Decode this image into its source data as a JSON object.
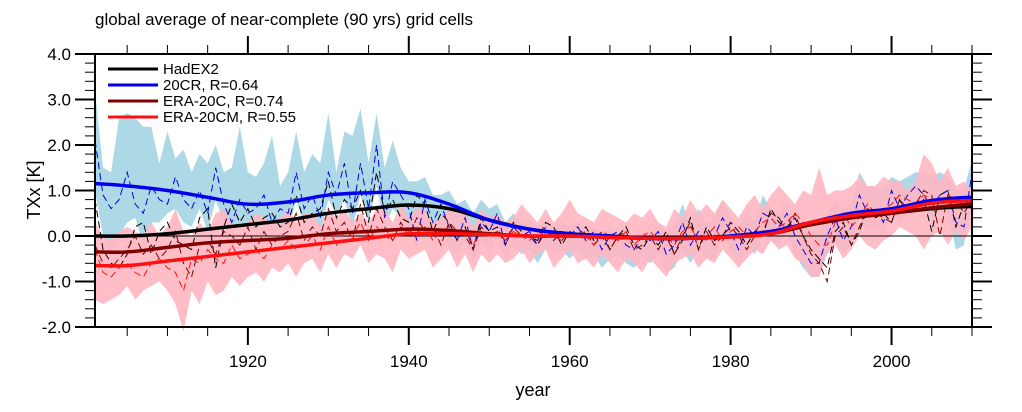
{
  "chart_data": {
    "type": "line",
    "title": "global average of near-complete (90 yrs) grid cells",
    "xlabel": "year",
    "ylabel": "TXx [K]",
    "xlim": [
      1901,
      2010
    ],
    "ylim": [
      -2.0,
      4.0
    ],
    "x_ticks": [
      1920,
      1940,
      1960,
      1980,
      2000
    ],
    "x_tick_labels": [
      "1920",
      "1940",
      "1960",
      "1980",
      "2000"
    ],
    "y_ticks": [
      -2.0,
      -1.0,
      0.0,
      1.0,
      2.0,
      3.0,
      4.0
    ],
    "y_tick_labels": [
      "-2.0",
      "-1.0",
      "0.0",
      "1.0",
      "2.0",
      "3.0",
      "4.0"
    ],
    "zero_line": true,
    "grid": false,
    "legend_position": "top-left",
    "legend": [
      {
        "label": "HadEX2",
        "color": "#000000"
      },
      {
        "label": "20CR, R=0.64",
        "color": "#0000ee"
      },
      {
        "label": "ERA-20C, R=0.74",
        "color": "#800000"
      },
      {
        "label": "ERA-20CM, R=0.55",
        "color": "#ff1010"
      }
    ],
    "colors": {
      "hadex2": "#000000",
      "20cr": "#0000ee",
      "era20c": "#800000",
      "era20cm": "#ff1010",
      "20cr_spread": "#add8e6",
      "era20cm_spread": "#ffb6c1"
    },
    "smoothed": {
      "years": [
        1901,
        1905,
        1910,
        1915,
        1920,
        1925,
        1930,
        1935,
        1940,
        1945,
        1950,
        1955,
        1960,
        1965,
        1970,
        1975,
        1980,
        1985,
        1990,
        1995,
        2000,
        2005,
        2010
      ],
      "series": [
        {
          "name": "HadEX2",
          "values": [
            0.0,
            0.0,
            0.05,
            0.15,
            0.25,
            0.35,
            0.5,
            0.6,
            0.68,
            0.6,
            0.35,
            0.15,
            0.05,
            0.0,
            -0.05,
            -0.05,
            0.0,
            0.1,
            0.25,
            0.4,
            0.5,
            0.6,
            0.65
          ]
        },
        {
          "name": "20CR, R=0.64",
          "values": [
            1.15,
            1.1,
            1.0,
            0.85,
            0.7,
            0.75,
            0.9,
            0.95,
            0.95,
            0.7,
            0.35,
            0.15,
            0.05,
            0.0,
            -0.05,
            -0.05,
            0.0,
            0.1,
            0.3,
            0.5,
            0.6,
            0.78,
            0.85
          ]
        },
        {
          "name": "ERA-20C, R=0.74",
          "values": [
            -0.35,
            -0.35,
            -0.25,
            -0.15,
            -0.1,
            -0.05,
            0.05,
            0.1,
            0.15,
            0.12,
            0.05,
            0.0,
            0.0,
            -0.03,
            -0.05,
            -0.05,
            -0.02,
            0.05,
            0.25,
            0.4,
            0.5,
            0.62,
            0.7
          ]
        },
        {
          "name": "ERA-20CM, R=0.55",
          "values": [
            -0.65,
            -0.65,
            -0.55,
            -0.45,
            -0.35,
            -0.25,
            -0.15,
            -0.05,
            0.05,
            0.05,
            0.03,
            0.0,
            0.0,
            -0.03,
            -0.05,
            -0.05,
            -0.02,
            0.05,
            0.3,
            0.45,
            0.55,
            0.72,
            0.78
          ]
        }
      ]
    },
    "annual": {
      "start_year": 1901,
      "series": [
        {
          "name": "HadEX2",
          "style": "dashed",
          "values": [
            0.8,
            -0.3,
            -0.6,
            -0.7,
            -0.4,
            0.2,
            0.3,
            -0.4,
            0.1,
            0.3,
            -0.1,
            -0.2,
            -0.3,
            0.4,
            0.6,
            -0.7,
            0.2,
            0.7,
            0.3,
            0.6,
            0.2,
            0.4,
            0.5,
            0.2,
            0.3,
            0.9,
            0.3,
            0.5,
            0.6,
            1.2,
            0.4,
            0.8,
            0.6,
            1.0,
            0.3,
            1.4,
            0.5,
            0.8,
            0.4,
            0.3,
            0.9,
            0.7,
            0.1,
            0.5,
            0.3,
            -0.1,
            0.2,
            -0.3,
            0.4,
            0.1,
            0.2,
            -0.2,
            0.3,
            0.1,
            0.0,
            -0.1,
            0.3,
            0.2,
            -0.2,
            0.1,
            0.0,
            0.2,
            -0.1,
            0.1,
            -0.3,
            0.0,
            0.2,
            -0.2,
            -0.3,
            0.0,
            -0.2,
            0.1,
            -0.4,
            -0.1,
            0.4,
            -0.3,
            0.2,
            -0.1,
            0.0,
            0.3,
            0.1,
            -0.2,
            0.1,
            0.0,
            0.6,
            0.3,
            0.2,
            0.4,
            0.0,
            -0.3,
            -0.5,
            -0.7,
            0.1,
            0.3,
            -0.2,
            0.1,
            0.6,
            0.4,
            0.5,
            0.3,
            0.8,
            0.5,
            0.6,
            0.8,
            0.1,
            0.9,
            1.0,
            0.2,
            0.7,
            0.6
          ]
        },
        {
          "name": "20CR, R=0.64",
          "style": "dashed",
          "values": [
            2.1,
            0.9,
            0.6,
            0.8,
            1.4,
            0.7,
            0.5,
            1.1,
            0.8,
            0.7,
            1.3,
            0.8,
            0.6,
            1.0,
            0.5,
            1.5,
            0.7,
            0.3,
            0.8,
            0.5,
            0.6,
            0.9,
            0.3,
            0.6,
            0.5,
            1.4,
            0.6,
            0.9,
            0.4,
            1.4,
            0.9,
            1.6,
            0.5,
            1.6,
            0.6,
            2.0,
            0.4,
            1.2,
            0.9,
            0.6,
            -0.1,
            0.8,
            0.3,
            0.7,
            0.2,
            -0.1,
            0.4,
            -0.3,
            0.3,
            0.1,
            0.5,
            -0.2,
            0.2,
            0.0,
            0.1,
            -0.2,
            0.2,
            -0.1,
            0.1,
            0.0,
            0.2,
            -0.1,
            0.1,
            -0.3,
            0.0,
            0.1,
            -0.2,
            -0.3,
            0.0,
            -0.1,
            0.1,
            -0.4,
            -0.2,
            0.3,
            -0.2,
            0.1,
            -0.1,
            0.0,
            0.4,
            0.1,
            -0.3,
            0.2,
            0.0,
            0.5,
            0.4,
            0.2,
            0.5,
            0.0,
            -0.3,
            -0.6,
            -0.6,
            0.0,
            0.4,
            -0.1,
            0.2,
            0.9,
            0.5,
            0.6,
            0.3,
            1.0,
            0.6,
            0.9,
            1.1,
            0.9,
            0.6,
            0.9,
            1.0,
            0.3,
            0.2,
            1.4
          ]
        },
        {
          "name": "ERA-20C, R=0.74",
          "style": "dashed",
          "values": [
            -0.2,
            -0.6,
            -0.7,
            -0.5,
            -0.3,
            0.0,
            -0.4,
            -0.2,
            -0.5,
            -0.3,
            0.1,
            -0.6,
            -0.9,
            -0.2,
            -0.1,
            -0.4,
            0.1,
            0.0,
            -0.2,
            0.2,
            -0.3,
            0.1,
            -0.2,
            0.0,
            0.1,
            0.5,
            -0.1,
            0.2,
            0.0,
            0.6,
            0.1,
            0.3,
            -0.1,
            0.7,
            0.0,
            0.6,
            0.2,
            -0.1,
            0.3,
            0.0,
            0.4,
            0.1,
            0.2,
            -0.2,
            0.3,
            0.1,
            0.0,
            -0.3,
            0.2,
            0.0,
            0.1,
            -0.1,
            0.2,
            0.0,
            0.0,
            -0.2,
            0.1,
            0.0,
            -0.1,
            0.1,
            0.0,
            0.1,
            -0.2,
            0.0,
            -0.3,
            0.0,
            0.1,
            -0.3,
            -0.2,
            0.0,
            -0.3,
            0.0,
            -0.4,
            0.0,
            0.3,
            -0.3,
            0.1,
            -0.2,
            0.0,
            0.2,
            0.0,
            -0.3,
            0.0,
            0.1,
            0.5,
            0.4,
            0.1,
            0.5,
            0.0,
            -0.4,
            -0.6,
            -1.0,
            0.0,
            0.2,
            -0.2,
            0.2,
            0.6,
            0.5,
            0.4,
            0.3,
            0.8,
            0.6,
            0.7,
            1.0,
            0.9,
            0.0,
            0.9,
            0.8,
            0.5,
            0.8
          ]
        },
        {
          "name": "ERA-20CM, R=0.55",
          "style": "dashed",
          "values": [
            -0.3,
            -0.8,
            -0.9,
            -0.7,
            -0.6,
            -0.8,
            -0.9,
            -0.6,
            -0.5,
            -0.7,
            -0.8,
            -1.2,
            -0.5,
            -0.6,
            -0.3,
            -0.5,
            -0.6,
            -0.2,
            -0.5,
            -0.4,
            -0.3,
            -0.5,
            -0.2,
            -0.3,
            -0.1,
            -0.3,
            -0.2,
            0.0,
            -0.3,
            0.2,
            -0.2,
            0.1,
            0.0,
            0.3,
            -0.1,
            0.2,
            0.0,
            -0.1,
            0.2,
            0.1,
            0.0,
            0.2,
            -0.1,
            0.1,
            0.2,
            0.0,
            0.1,
            -0.2,
            0.1,
            0.0,
            0.1,
            -0.1,
            0.1,
            0.0,
            -0.1,
            0.1,
            0.0,
            0.0,
            -0.1,
            0.1,
            0.0,
            0.0,
            -0.2,
            0.1,
            0.0,
            -0.1,
            0.1,
            -0.2,
            0.0,
            0.1,
            -0.1,
            0.0,
            -0.2,
            0.1,
            0.2,
            -0.1,
            0.0,
            0.2,
            -0.1,
            0.1,
            0.2,
            0.0,
            0.1,
            0.3,
            0.4,
            0.2,
            0.3,
            0.5,
            0.3,
            0.0,
            -0.2,
            -0.2,
            0.3,
            0.5,
            0.2,
            0.4,
            0.7,
            0.5,
            0.6,
            0.7,
            0.9,
            0.8,
            0.7,
            0.9,
            0.8,
            0.7,
            0.9,
            0.8,
            0.7,
            0.9
          ]
        }
      ]
    },
    "spread": {
      "start_year": 1901,
      "series": [
        {
          "name": "20CR spread",
          "upper": [
            3.2,
            1.5,
            1.4,
            2.6,
            2.7,
            2.6,
            2.4,
            2.4,
            1.6,
            2.3,
            1.7,
            1.9,
            1.4,
            1.8,
            1.6,
            2.0,
            1.4,
            1.5,
            2.4,
            1.4,
            1.3,
            1.6,
            2.2,
            1.1,
            1.4,
            2.3,
            1.4,
            1.8,
            1.6,
            2.7,
            1.4,
            2.3,
            2.2,
            2.8,
            1.6,
            2.7,
            1.5,
            2.1,
            1.5,
            1.2,
            1.2,
            1.3,
            0.9,
            0.9,
            1.0,
            0.7,
            0.8,
            0.5,
            0.8,
            0.6,
            0.7,
            0.3,
            0.5,
            0.3,
            0.4,
            0.2,
            0.3,
            0.2,
            0.3,
            0.2,
            0.3,
            0.1,
            0.2,
            0.1,
            0.2,
            0.0,
            0.3,
            -0.1,
            0.1,
            0.0,
            0.3,
            0.1,
            0.2,
            0.7,
            0.3,
            0.6,
            0.3,
            0.4,
            0.8,
            0.4,
            0.2,
            0.5,
            0.3,
            0.9,
            0.6,
            0.5,
            0.8,
            0.3,
            0.3,
            0.1,
            0.1,
            0.5,
            0.8,
            0.6,
            0.7,
            1.4,
            1.1,
            1.1,
            1.0,
            1.3,
            1.2,
            1.3,
            1.4,
            1.4,
            1.3,
            1.4,
            1.3,
            1.0,
            1.0,
            1.7
          ],
          "lower": [
            1.0,
            0.0,
            -0.4,
            0.0,
            0.3,
            0.4,
            -0.2,
            0.3,
            0.3,
            0.5,
            0.6,
            0.3,
            0.2,
            0.6,
            0.1,
            0.8,
            0.3,
            0.0,
            0.3,
            0.2,
            0.1,
            0.4,
            0.0,
            0.2,
            0.1,
            0.8,
            0.2,
            0.5,
            0.1,
            0.8,
            0.5,
            0.8,
            0.2,
            0.9,
            0.3,
            1.1,
            0.2,
            0.6,
            0.4,
            0.2,
            -0.3,
            0.3,
            -0.1,
            0.2,
            -0.3,
            -0.4,
            -0.1,
            -0.6,
            -0.1,
            -0.4,
            0.0,
            -0.6,
            -0.2,
            -0.4,
            -0.3,
            -0.6,
            -0.3,
            -0.4,
            -0.3,
            -0.5,
            -0.3,
            -0.5,
            -0.4,
            -0.7,
            -0.5,
            -0.4,
            -0.6,
            -0.7,
            -0.5,
            -0.6,
            -0.4,
            -0.8,
            -0.7,
            -0.3,
            -0.6,
            -0.3,
            -0.5,
            -0.5,
            0.0,
            -0.3,
            -0.7,
            -0.2,
            -0.4,
            0.0,
            -0.1,
            -0.2,
            0.1,
            -0.4,
            -0.7,
            -0.9,
            -0.9,
            -0.3,
            0.0,
            -0.4,
            -0.2,
            0.4,
            0.1,
            0.2,
            0.0,
            0.5,
            0.3,
            0.5,
            0.6,
            0.6,
            0.4,
            0.5,
            0.5,
            -0.3,
            -0.2,
            0.8
          ]
        },
        {
          "name": "ERA-20CM spread",
          "upper": [
            0.3,
            0.0,
            -0.1,
            0.1,
            0.2,
            0.1,
            0.0,
            0.3,
            0.0,
            0.2,
            0.6,
            0.1,
            0.0,
            0.3,
            0.1,
            0.5,
            0.6,
            0.3,
            0.2,
            0.3,
            0.5,
            0.4,
            0.3,
            0.4,
            0.6,
            0.3,
            0.5,
            0.5,
            0.2,
            0.6,
            0.4,
            0.6,
            0.3,
            0.5,
            0.3,
            0.6,
            0.6,
            0.3,
            0.7,
            0.4,
            0.6,
            0.6,
            0.3,
            0.4,
            0.6,
            0.5,
            0.5,
            0.2,
            0.6,
            0.4,
            0.5,
            0.3,
            0.4,
            0.7,
            0.5,
            0.3,
            0.6,
            0.3,
            0.5,
            0.8,
            0.5,
            0.4,
            0.3,
            0.6,
            0.5,
            0.4,
            0.3,
            0.5,
            0.4,
            0.6,
            0.3,
            0.2,
            0.6,
            0.4,
            0.8,
            0.5,
            0.7,
            0.5,
            0.8,
            0.6,
            0.4,
            0.7,
            0.9,
            0.6,
            0.9,
            1.1,
            0.9,
            0.7,
            1.0,
            0.9,
            1.5,
            0.9,
            1.0,
            1.0,
            1.1,
            1.3,
            1.1,
            1.1,
            1.3,
            1.2,
            1.2,
            1.0,
            1.2,
            1.8,
            1.6,
            1.2,
            1.5,
            1.1,
            1.2,
            1.0
          ],
          "lower": [
            -1.4,
            -1.5,
            -1.4,
            -1.3,
            -1.1,
            -1.4,
            -1.2,
            -1.1,
            -1.0,
            -1.2,
            -1.5,
            -2.1,
            -1.2,
            -1.5,
            -1.0,
            -1.3,
            -1.2,
            -0.9,
            -1.1,
            -0.9,
            -0.8,
            -1.0,
            -0.7,
            -0.8,
            -0.6,
            -0.9,
            -0.6,
            -0.5,
            -0.8,
            -0.4,
            -0.7,
            -0.4,
            -0.5,
            -0.2,
            -0.6,
            -0.4,
            -0.5,
            -0.8,
            -0.3,
            -0.5,
            -0.4,
            -0.3,
            -0.7,
            -0.5,
            -0.3,
            -0.7,
            -0.4,
            -0.8,
            -0.4,
            -0.6,
            -0.4,
            -0.6,
            -0.5,
            -0.3,
            -0.6,
            -0.4,
            -0.3,
            -0.7,
            -0.5,
            -0.3,
            -0.6,
            -0.5,
            -0.7,
            -0.4,
            -0.6,
            -0.8,
            -0.5,
            -0.6,
            -0.8,
            -0.5,
            -0.7,
            -0.9,
            -0.6,
            -0.5,
            -0.4,
            -0.7,
            -0.5,
            -0.6,
            -0.3,
            -0.5,
            -0.7,
            -0.5,
            -0.3,
            -0.4,
            -0.1,
            -0.3,
            -0.2,
            -0.5,
            -0.6,
            -0.9,
            -0.9,
            -0.4,
            -0.2,
            -0.5,
            -0.3,
            0.0,
            -0.2,
            -0.3,
            -0.1,
            0.0,
            0.2,
            0.1,
            0.0,
            -0.3,
            0.0,
            0.1,
            -0.2,
            0.1,
            -0.1,
            0.2
          ]
        }
      ]
    }
  }
}
